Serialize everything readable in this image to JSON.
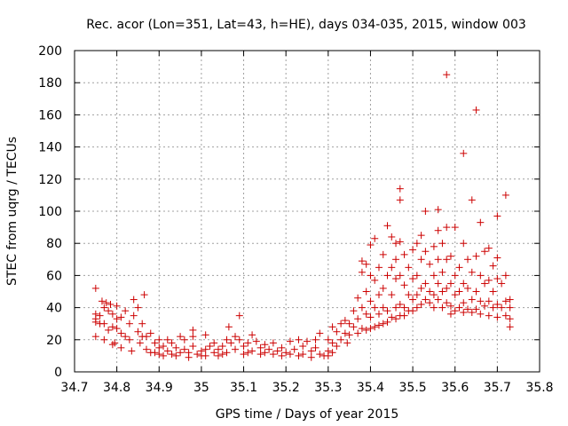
{
  "chart_data": {
    "type": "scatter",
    "title": "Rec. acor (Lon=351, Lat=43, h=HE), days 034-035, 2015, window 003",
    "xlabel": "GPS time / Days of year 2015",
    "ylabel": "STEC from uqrg / TECUs",
    "xlim": [
      34.7,
      35.8
    ],
    "ylim": [
      0,
      200
    ],
    "xticks": [
      34.7,
      34.8,
      34.9,
      35.0,
      35.1,
      35.2,
      35.3,
      35.4,
      35.5,
      35.6,
      35.7,
      35.8
    ],
    "xtick_labels": [
      "34.7",
      "34.8",
      "34.9",
      "35",
      "35.1",
      "35.2",
      "35.3",
      "35.4",
      "35.5",
      "35.6",
      "35.7",
      "35.8"
    ],
    "yticks": [
      0,
      20,
      40,
      60,
      80,
      100,
      120,
      140,
      160,
      180,
      200
    ],
    "ytick_labels": [
      "0",
      "20",
      "40",
      "60",
      "80",
      "100",
      "120",
      "140",
      "160",
      "180",
      "200"
    ],
    "grid": true,
    "marker": "+",
    "color": "#cc0000",
    "series": [
      {
        "name": "STEC",
        "points": [
          [
            34.75,
            52
          ],
          [
            34.75,
            36
          ],
          [
            34.75,
            33
          ],
          [
            34.75,
            31
          ],
          [
            34.75,
            22
          ],
          [
            34.76,
            35
          ],
          [
            34.76,
            30
          ],
          [
            34.765,
            44
          ],
          [
            34.77,
            40
          ],
          [
            34.77,
            30
          ],
          [
            34.77,
            20
          ],
          [
            34.775,
            43
          ],
          [
            34.78,
            38
          ],
          [
            34.78,
            26
          ],
          [
            34.785,
            42
          ],
          [
            34.79,
            36
          ],
          [
            34.79,
            28
          ],
          [
            34.79,
            17
          ],
          [
            34.795,
            18
          ],
          [
            34.8,
            41
          ],
          [
            34.8,
            33
          ],
          [
            34.8,
            27
          ],
          [
            34.81,
            34
          ],
          [
            34.81,
            24
          ],
          [
            34.81,
            15
          ],
          [
            34.82,
            38
          ],
          [
            34.82,
            22
          ],
          [
            34.83,
            30
          ],
          [
            34.83,
            20
          ],
          [
            34.835,
            13
          ],
          [
            34.84,
            45
          ],
          [
            34.84,
            35
          ],
          [
            34.85,
            40
          ],
          [
            34.85,
            25
          ],
          [
            34.855,
            18
          ],
          [
            34.86,
            30
          ],
          [
            34.86,
            22
          ],
          [
            34.865,
            48
          ],
          [
            34.87,
            22
          ],
          [
            34.87,
            14
          ],
          [
            34.88,
            24
          ],
          [
            34.88,
            12
          ],
          [
            34.89,
            18
          ],
          [
            34.89,
            12
          ],
          [
            34.9,
            20
          ],
          [
            34.9,
            15
          ],
          [
            34.9,
            11
          ],
          [
            34.91,
            16
          ],
          [
            34.91,
            10
          ],
          [
            34.92,
            20
          ],
          [
            34.92,
            13
          ],
          [
            34.93,
            18
          ],
          [
            34.93,
            11
          ],
          [
            34.94,
            15
          ],
          [
            34.94,
            10
          ],
          [
            34.95,
            22
          ],
          [
            34.95,
            12
          ],
          [
            34.96,
            20
          ],
          [
            34.96,
            14
          ],
          [
            34.97,
            12
          ],
          [
            34.97,
            9
          ],
          [
            34.98,
            26
          ],
          [
            34.98,
            22
          ],
          [
            34.98,
            16
          ],
          [
            34.99,
            11
          ],
          [
            35.0,
            13
          ],
          [
            35.0,
            10
          ],
          [
            35.01,
            23
          ],
          [
            35.01,
            14
          ],
          [
            35.01,
            10
          ],
          [
            35.02,
            16
          ],
          [
            35.03,
            18
          ],
          [
            35.03,
            12
          ],
          [
            35.04,
            14
          ],
          [
            35.04,
            10
          ],
          [
            35.05,
            16
          ],
          [
            35.05,
            11
          ],
          [
            35.06,
            20
          ],
          [
            35.06,
            12
          ],
          [
            35.065,
            28
          ],
          [
            35.07,
            18
          ],
          [
            35.08,
            22
          ],
          [
            35.08,
            14
          ],
          [
            35.09,
            35
          ],
          [
            35.09,
            20
          ],
          [
            35.1,
            16
          ],
          [
            35.1,
            11
          ],
          [
            35.11,
            18
          ],
          [
            35.11,
            12
          ],
          [
            35.12,
            23
          ],
          [
            35.12,
            13
          ],
          [
            35.13,
            19
          ],
          [
            35.14,
            15
          ],
          [
            35.14,
            11
          ],
          [
            35.15,
            17
          ],
          [
            35.15,
            12
          ],
          [
            35.16,
            14
          ],
          [
            35.17,
            18
          ],
          [
            35.17,
            11
          ],
          [
            35.18,
            13
          ],
          [
            35.19,
            15
          ],
          [
            35.19,
            10
          ],
          [
            35.2,
            12
          ],
          [
            35.21,
            19
          ],
          [
            35.21,
            11
          ],
          [
            35.22,
            14
          ],
          [
            35.23,
            20
          ],
          [
            35.23,
            10
          ],
          [
            35.24,
            16
          ],
          [
            35.24,
            11
          ],
          [
            35.25,
            19
          ],
          [
            35.26,
            13
          ],
          [
            35.26,
            9
          ],
          [
            35.27,
            20
          ],
          [
            35.27,
            15
          ],
          [
            35.28,
            24
          ],
          [
            35.28,
            11
          ],
          [
            35.29,
            10
          ],
          [
            35.3,
            20
          ],
          [
            35.3,
            13
          ],
          [
            35.3,
            10
          ],
          [
            35.31,
            28
          ],
          [
            35.31,
            18
          ],
          [
            35.31,
            12
          ],
          [
            35.32,
            25
          ],
          [
            35.32,
            16
          ],
          [
            35.33,
            30
          ],
          [
            35.33,
            20
          ],
          [
            35.34,
            32
          ],
          [
            35.34,
            24
          ],
          [
            35.345,
            18
          ],
          [
            35.35,
            30
          ],
          [
            35.35,
            23
          ],
          [
            35.36,
            38
          ],
          [
            35.36,
            28
          ],
          [
            35.37,
            46
          ],
          [
            35.37,
            33
          ],
          [
            35.37,
            24
          ],
          [
            35.38,
            69
          ],
          [
            35.38,
            62
          ],
          [
            35.38,
            40
          ],
          [
            35.38,
            27
          ],
          [
            35.39,
            67
          ],
          [
            35.39,
            50
          ],
          [
            35.39,
            36
          ],
          [
            35.39,
            26
          ],
          [
            35.4,
            79
          ],
          [
            35.4,
            60
          ],
          [
            35.4,
            44
          ],
          [
            35.4,
            34
          ],
          [
            35.4,
            27
          ],
          [
            35.41,
            83
          ],
          [
            35.41,
            57
          ],
          [
            35.41,
            40
          ],
          [
            35.41,
            28
          ],
          [
            35.42,
            65
          ],
          [
            35.42,
            48
          ],
          [
            35.42,
            36
          ],
          [
            35.42,
            29
          ],
          [
            35.43,
            73
          ],
          [
            35.43,
            52
          ],
          [
            35.43,
            40
          ],
          [
            35.43,
            30
          ],
          [
            35.44,
            91
          ],
          [
            35.44,
            60
          ],
          [
            35.44,
            38
          ],
          [
            35.44,
            31
          ],
          [
            35.45,
            84
          ],
          [
            35.45,
            65
          ],
          [
            35.45,
            48
          ],
          [
            35.45,
            34
          ],
          [
            35.46,
            80
          ],
          [
            35.46,
            70
          ],
          [
            35.46,
            58
          ],
          [
            35.46,
            40
          ],
          [
            35.46,
            33
          ],
          [
            35.47,
            114
          ],
          [
            35.47,
            107
          ],
          [
            35.47,
            81
          ],
          [
            35.47,
            60
          ],
          [
            35.47,
            42
          ],
          [
            35.47,
            35
          ],
          [
            35.48,
            73
          ],
          [
            35.48,
            54
          ],
          [
            35.48,
            40
          ],
          [
            35.48,
            35
          ],
          [
            35.49,
            65
          ],
          [
            35.49,
            48
          ],
          [
            35.49,
            38
          ],
          [
            35.5,
            76
          ],
          [
            35.5,
            58
          ],
          [
            35.5,
            45
          ],
          [
            35.5,
            38
          ],
          [
            35.51,
            80
          ],
          [
            35.51,
            60
          ],
          [
            35.51,
            48
          ],
          [
            35.51,
            40
          ],
          [
            35.52,
            85
          ],
          [
            35.52,
            70
          ],
          [
            35.52,
            52
          ],
          [
            35.52,
            42
          ],
          [
            35.53,
            100
          ],
          [
            35.53,
            75
          ],
          [
            35.53,
            55
          ],
          [
            35.53,
            45
          ],
          [
            35.54,
            67
          ],
          [
            35.54,
            50
          ],
          [
            35.54,
            43
          ],
          [
            35.55,
            78
          ],
          [
            35.55,
            60
          ],
          [
            35.55,
            48
          ],
          [
            35.55,
            40
          ],
          [
            35.56,
            101
          ],
          [
            35.56,
            88
          ],
          [
            35.56,
            70
          ],
          [
            35.56,
            55
          ],
          [
            35.56,
            45
          ],
          [
            35.57,
            80
          ],
          [
            35.57,
            62
          ],
          [
            35.57,
            50
          ],
          [
            35.57,
            40
          ],
          [
            35.58,
            185
          ],
          [
            35.58,
            90
          ],
          [
            35.58,
            70
          ],
          [
            35.58,
            52
          ],
          [
            35.58,
            43
          ],
          [
            35.59,
            72
          ],
          [
            35.59,
            55
          ],
          [
            35.59,
            41
          ],
          [
            35.59,
            36
          ],
          [
            35.6,
            90
          ],
          [
            35.6,
            60
          ],
          [
            35.6,
            48
          ],
          [
            35.6,
            38
          ],
          [
            35.61,
            65
          ],
          [
            35.61,
            50
          ],
          [
            35.61,
            40
          ],
          [
            35.62,
            136
          ],
          [
            35.62,
            80
          ],
          [
            35.62,
            55
          ],
          [
            35.62,
            43
          ],
          [
            35.62,
            37
          ],
          [
            35.63,
            70
          ],
          [
            35.63,
            52
          ],
          [
            35.63,
            39
          ],
          [
            35.64,
            107
          ],
          [
            35.64,
            62
          ],
          [
            35.64,
            45
          ],
          [
            35.64,
            37
          ],
          [
            35.65,
            163
          ],
          [
            35.65,
            72
          ],
          [
            35.65,
            50
          ],
          [
            35.65,
            39
          ],
          [
            35.66,
            93
          ],
          [
            35.66,
            60
          ],
          [
            35.66,
            44
          ],
          [
            35.66,
            36
          ],
          [
            35.67,
            75
          ],
          [
            35.67,
            55
          ],
          [
            35.67,
            41
          ],
          [
            35.68,
            77
          ],
          [
            35.68,
            57
          ],
          [
            35.68,
            44
          ],
          [
            35.68,
            35
          ],
          [
            35.69,
            66
          ],
          [
            35.69,
            50
          ],
          [
            35.69,
            40
          ],
          [
            35.7,
            97
          ],
          [
            35.7,
            71
          ],
          [
            35.7,
            58
          ],
          [
            35.7,
            42
          ],
          [
            35.7,
            34
          ],
          [
            35.71,
            55
          ],
          [
            35.71,
            40
          ],
          [
            35.72,
            110
          ],
          [
            35.72,
            60
          ],
          [
            35.72,
            44
          ],
          [
            35.72,
            35
          ],
          [
            35.73,
            45
          ],
          [
            35.73,
            40
          ],
          [
            35.73,
            33
          ],
          [
            35.73,
            28
          ]
        ]
      }
    ]
  }
}
